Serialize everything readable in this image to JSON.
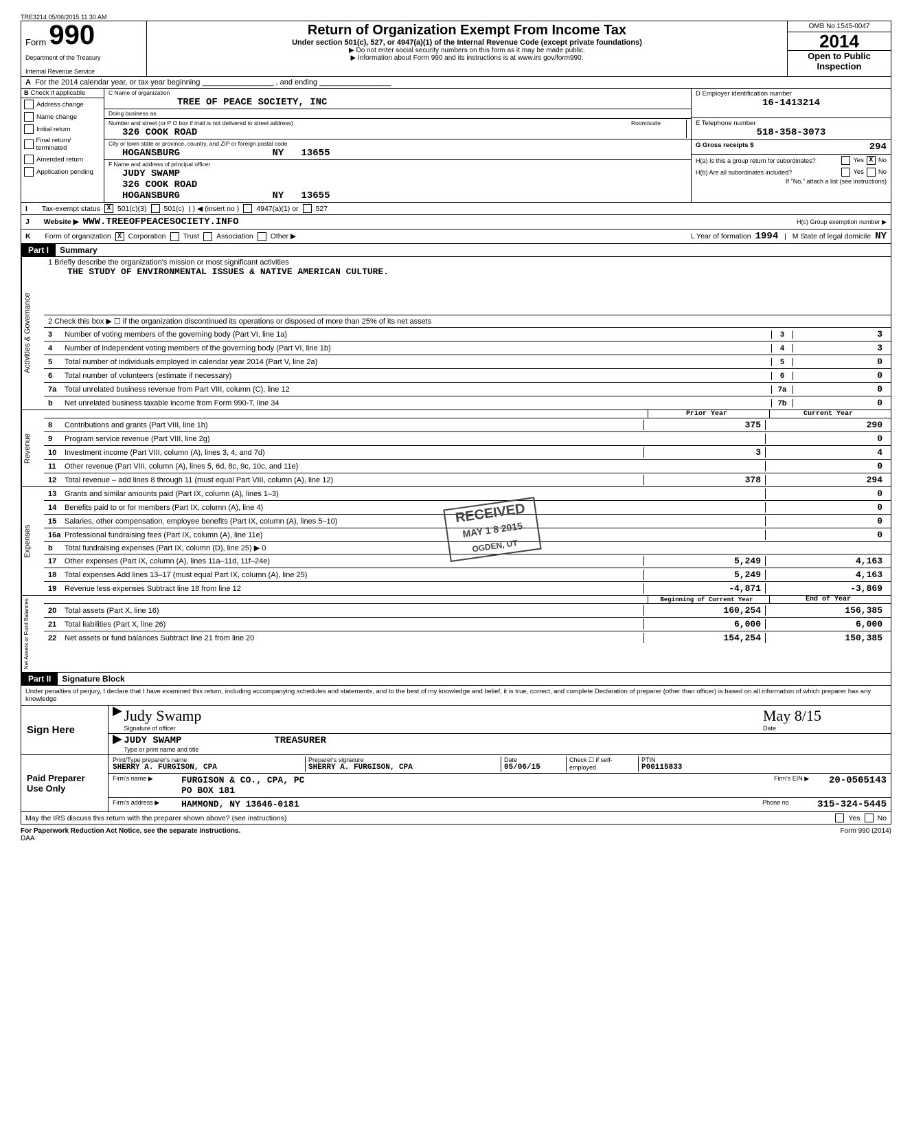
{
  "header_ts": "TRE3214 05/06/2015 11 30 AM",
  "form_no": "990",
  "form_word": "Form",
  "dept1": "Department of the Treasury",
  "dept2": "Internal Revenue Service",
  "title": "Return of Organization Exempt From Income Tax",
  "subtitle": "Under section 501(c), 527, or 4947(a)(1) of the Internal Revenue Code (except private foundations)",
  "arrow1": "▶ Do not enter social security numbers on this form as it may be made public.",
  "arrow2": "▶ Information about Form 990 and its instructions is at www.irs gov/form990.",
  "omb": "OMB No 1545-0047",
  "year": "2014",
  "open": "Open to Public Inspection",
  "rowA": "For the 2014 calendar year, or tax year beginning _________________ , and ending _________________",
  "colB_hdr": "Check if applicable",
  "colB_items": [
    "Address change",
    "Name change",
    "Initial return",
    "Final return/ terminated",
    "Amended return",
    "Application pending"
  ],
  "colC_name_lbl": "C Name of organization",
  "org_name": "TREE OF PEACE SOCIETY, INC",
  "dba_lbl": "Doing business as",
  "addr_lbl": "Number and street (or P O  box if mail is not delivered to street address)",
  "addr": "326 COOK ROAD",
  "room_lbl": "Room/suite",
  "city_lbl": "City or town  state or province, country, and ZIP or foreign postal code",
  "city": "HOGANSBURG",
  "state": "NY",
  "zip": "13655",
  "officer_lbl": "F  Name and address of principal officer",
  "officer_name": "JUDY SWAMP",
  "officer_addr": "326 COOK ROAD",
  "officer_city": "HOGANSBURG",
  "officer_state": "NY",
  "officer_zip": "13655",
  "colD_lbl": "D Employer identification number",
  "ein": "16-1413214",
  "tel_lbl": "E Telephone number",
  "tel": "518-358-3073",
  "gross_lbl": "G Gross receipts $",
  "gross": "294",
  "Ha_lbl": "H(a) Is this a group return for subordinates?",
  "Hb_lbl": "H(b) Are all subordinates included?",
  "Hno_lbl": "If \"No,\" attach a list (see instructions)",
  "Hc_lbl": "H(c) Group exemption number ▶",
  "rowI_lbl": "Tax-exempt status",
  "rowI_opts": [
    "501(c)(3)",
    "501(c)",
    "(          ) ◀ (insert no )",
    "4947(a)(1) or",
    "527"
  ],
  "rowJ_lbl": "Website ▶",
  "website": "WWW.TREEOFPEACESOCIETY.INFO",
  "rowK_lbl": "Form of organization",
  "rowK_opts": [
    "Corporation",
    "Trust",
    "Association",
    "Other ▶"
  ],
  "rowL_lbl": "L  Year of formation",
  "year_formed": "1994",
  "rowM_lbl": "M   State of legal domicile",
  "state_domicile": "NY",
  "part1_hdr": "Part I",
  "part1_title": "Summary",
  "q1_lbl": "1   Briefly describe the organization's mission or most significant activities",
  "q1_val": "THE STUDY OF ENVIRONMENTAL ISSUES & NATIVE AMERICAN CULTURE.",
  "q2_lbl": "2   Check this box ▶ ☐   if the organization discontinued its operations or disposed of more than 25% of its net assets",
  "lines_ag": [
    {
      "n": "3",
      "t": "Number of voting members of the governing body (Part VI, line 1a)",
      "box": "3",
      "v": "3"
    },
    {
      "n": "4",
      "t": "Number of independent voting members of the governing body (Part VI, line 1b)",
      "box": "4",
      "v": "3"
    },
    {
      "n": "5",
      "t": "Total number of individuals employed in calendar year 2014 (Part V, line 2a)",
      "box": "5",
      "v": "0"
    },
    {
      "n": "6",
      "t": "Total number of volunteers (estimate if necessary)",
      "box": "6",
      "v": "0"
    },
    {
      "n": "7a",
      "t": "Total unrelated business revenue from Part VIII, column (C), line 12",
      "box": "7a",
      "v": "0"
    },
    {
      "n": " b",
      "t": "Net unrelated business taxable income from Form 990-T, line 34",
      "box": "7b",
      "v": "0"
    }
  ],
  "prior_hdr": "Prior Year",
  "curr_hdr": "Current Year",
  "lines_rev": [
    {
      "n": "8",
      "t": "Contributions and grants (Part VIII, line 1h)",
      "p": "375",
      "c": "290"
    },
    {
      "n": "9",
      "t": "Program service revenue (Part VIII, line 2g)",
      "p": "",
      "c": "0"
    },
    {
      "n": "10",
      "t": "Investment income (Part VIII, column (A), lines 3, 4, and 7d)",
      "p": "3",
      "c": "4"
    },
    {
      "n": "11",
      "t": "Other revenue (Part VIII, column (A), lines 5, 6d, 8c, 9c, 10c, and 11e)",
      "p": "",
      "c": "0"
    },
    {
      "n": "12",
      "t": "Total revenue – add lines 8 through 11 (must equal Part VIII, column (A), line 12)",
      "p": "378",
      "c": "294"
    }
  ],
  "lines_exp": [
    {
      "n": "13",
      "t": "Grants and similar amounts paid (Part IX, column (A), lines 1–3)",
      "p": "",
      "c": "0"
    },
    {
      "n": "14",
      "t": "Benefits paid to or for members (Part IX, column (A), line 4)",
      "p": "",
      "c": "0"
    },
    {
      "n": "15",
      "t": "Salaries, other compensation, employee benefits (Part IX, column (A), lines 5–10)",
      "p": "",
      "c": "0"
    },
    {
      "n": "16a",
      "t": "Professional fundraising fees (Part IX, column (A), line 11e)",
      "p": "",
      "c": "0"
    },
    {
      "n": " b",
      "t": "Total fundraising expenses (Part IX, column (D), line 25) ▶                                                      0",
      "p": "",
      "c": "",
      "shade": true
    },
    {
      "n": "17",
      "t": "Other expenses (Part IX, column (A), lines 11a–11d, 11f–24e)",
      "p": "5,249",
      "c": "4,163"
    },
    {
      "n": "18",
      "t": "Total expenses  Add lines 13–17 (must equal Part IX, column (A), line 25)",
      "p": "5,249",
      "c": "4,163"
    },
    {
      "n": "19",
      "t": "Revenue less expenses  Subtract line 18 from line 12",
      "p": "-4,871",
      "c": "-3,869"
    }
  ],
  "boy_hdr": "Beginning of Current Year",
  "eoy_hdr": "End of Year",
  "lines_na": [
    {
      "n": "20",
      "t": "Total assets (Part X, line 16)",
      "p": "160,254",
      "c": "156,385"
    },
    {
      "n": "21",
      "t": "Total liabilities (Part X, line 26)",
      "p": "6,000",
      "c": "6,000"
    },
    {
      "n": "22",
      "t": "Net assets or fund balances  Subtract line 21 from line 20",
      "p": "154,254",
      "c": "150,385"
    }
  ],
  "vlab_ag": "Activities & Governance",
  "vlab_rev": "Revenue",
  "vlab_exp": "Expenses",
  "vlab_na": "Net Assets or Fund Balances",
  "part2_hdr": "Part II",
  "part2_title": "Signature Block",
  "perjury": "Under penalties of perjury, I declare that I have examined this return, including accompanying schedules and statements, and to the best of my knowledge and belief, it is true, correct, and complete  Declaration of preparer (other than officer) is based on all information of which preparer has any knowledge",
  "sign_here": "Sign Here",
  "sig_of_officer": "Signature of officer",
  "sig_date_lbl": "Date",
  "sig_cursive": "Judy Swamp",
  "sig_name": "JUDY SWAMP",
  "sig_title": "TREASURER",
  "sig_name_lbl": "Type or print name and title",
  "date_cursive": "May 8/15",
  "paid_lbl": "Paid Preparer Use Only",
  "prep_name_lbl": "Print/Type preparer's name",
  "prep_name": "SHERRY A. FURGISON, CPA",
  "prep_sig_lbl": "Preparer's signature",
  "prep_sig": "SHERRY A. FURGISON, CPA",
  "prep_date": "05/06/15",
  "prep_check_lbl": "Check ☐ if self-employed",
  "ptin_lbl": "PTIN",
  "ptin": "P00115833",
  "firm_name_lbl": "Firm's name      ▶",
  "firm_name": "FURGISON & CO., CPA, PC",
  "firm_ein_lbl": "Firm's EIN ▶",
  "firm_ein": "20-0565143",
  "firm_addr_lbl": "Firm's address   ▶",
  "firm_addr1": "PO BOX 181",
  "firm_addr2": "HAMMOND, NY  13646-0181",
  "phone_lbl": "Phone no",
  "phone": "315-324-5445",
  "irs_discuss": "May the IRS discuss this return with the preparer shown above? (see instructions)",
  "yes": "Yes",
  "no": "No",
  "paperwork": "For Paperwork Reduction Act Notice, see the separate instructions.",
  "daa": "DAA",
  "form_foot": "Form 990 (2014)",
  "received": "RECEIVED",
  "received_date": "MAY 1 8 2015",
  "received_by": "OGDEN, UT"
}
